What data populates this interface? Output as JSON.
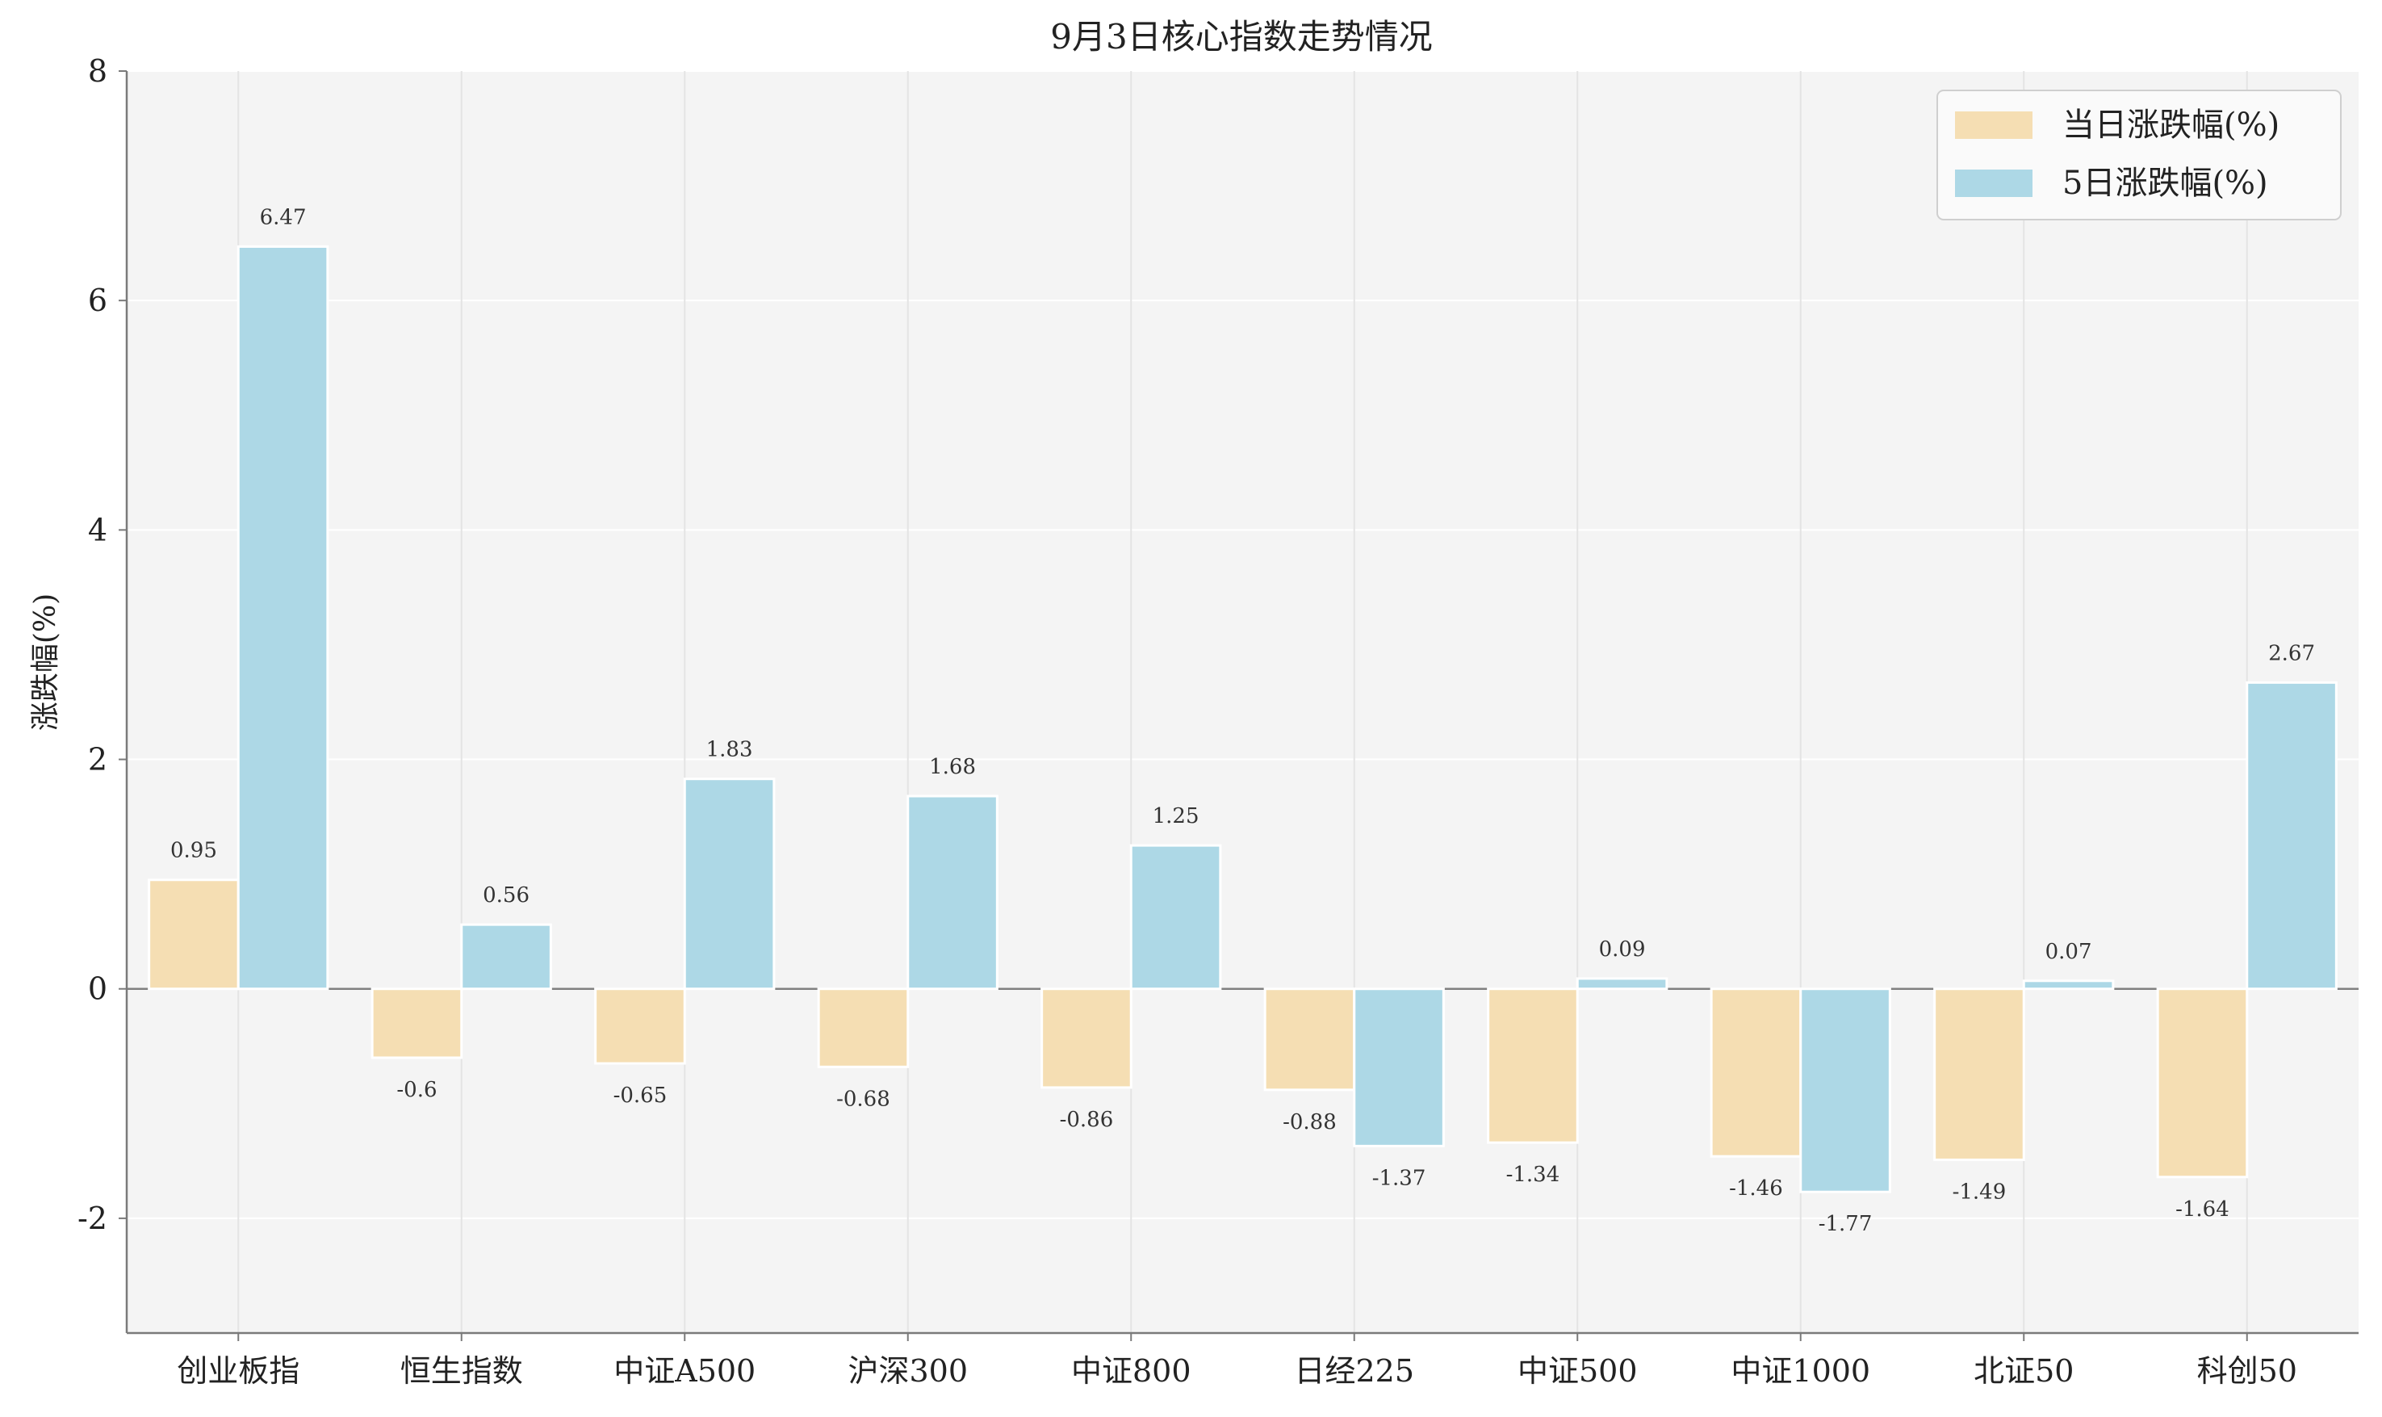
{
  "chart_data": {
    "type": "bar",
    "title": "9月3日核心指数走势情况",
    "xlabel": "",
    "ylabel": "涨跌幅(%)",
    "ylim": [
      -3,
      8
    ],
    "yticks": [
      -2,
      0,
      2,
      4,
      6,
      8
    ],
    "ytick_labels": [
      "-2",
      "0",
      "2",
      "4",
      "6",
      "8"
    ],
    "grid": true,
    "legend_position": "top-right",
    "categories": [
      "创业板指",
      "恒生指数",
      "中证A500",
      "沪深300",
      "中证800",
      "日经225",
      "中证500",
      "中证1000",
      "北证50",
      "科创50"
    ],
    "series": [
      {
        "name": "当日涨跌幅(%)",
        "color": "#f5deb3",
        "values": [
          0.95,
          -0.6,
          -0.65,
          -0.68,
          -0.86,
          -0.88,
          -1.34,
          -1.46,
          -1.49,
          -1.64
        ],
        "labels": [
          "0.95",
          "-0.6",
          "-0.65",
          "-0.68",
          "-0.86",
          "-0.88",
          "-1.34",
          "-1.46",
          "-1.49",
          "-1.64"
        ]
      },
      {
        "name": "5日涨跌幅(%)",
        "color": "#add8e6",
        "values": [
          6.47,
          0.56,
          1.83,
          1.68,
          1.25,
          -1.37,
          0.09,
          -1.77,
          0.07,
          2.67
        ],
        "labels": [
          "6.47",
          "0.56",
          "1.83",
          "1.68",
          "1.25",
          "-1.37",
          "0.09",
          "-1.77",
          "0.07",
          "2.67"
        ]
      }
    ]
  },
  "colors": {
    "plot_background": "#f4f4f4",
    "grid": "#ffffff",
    "axis": "#7a7a7a",
    "zero_line": "#808080",
    "text": "#222222"
  }
}
